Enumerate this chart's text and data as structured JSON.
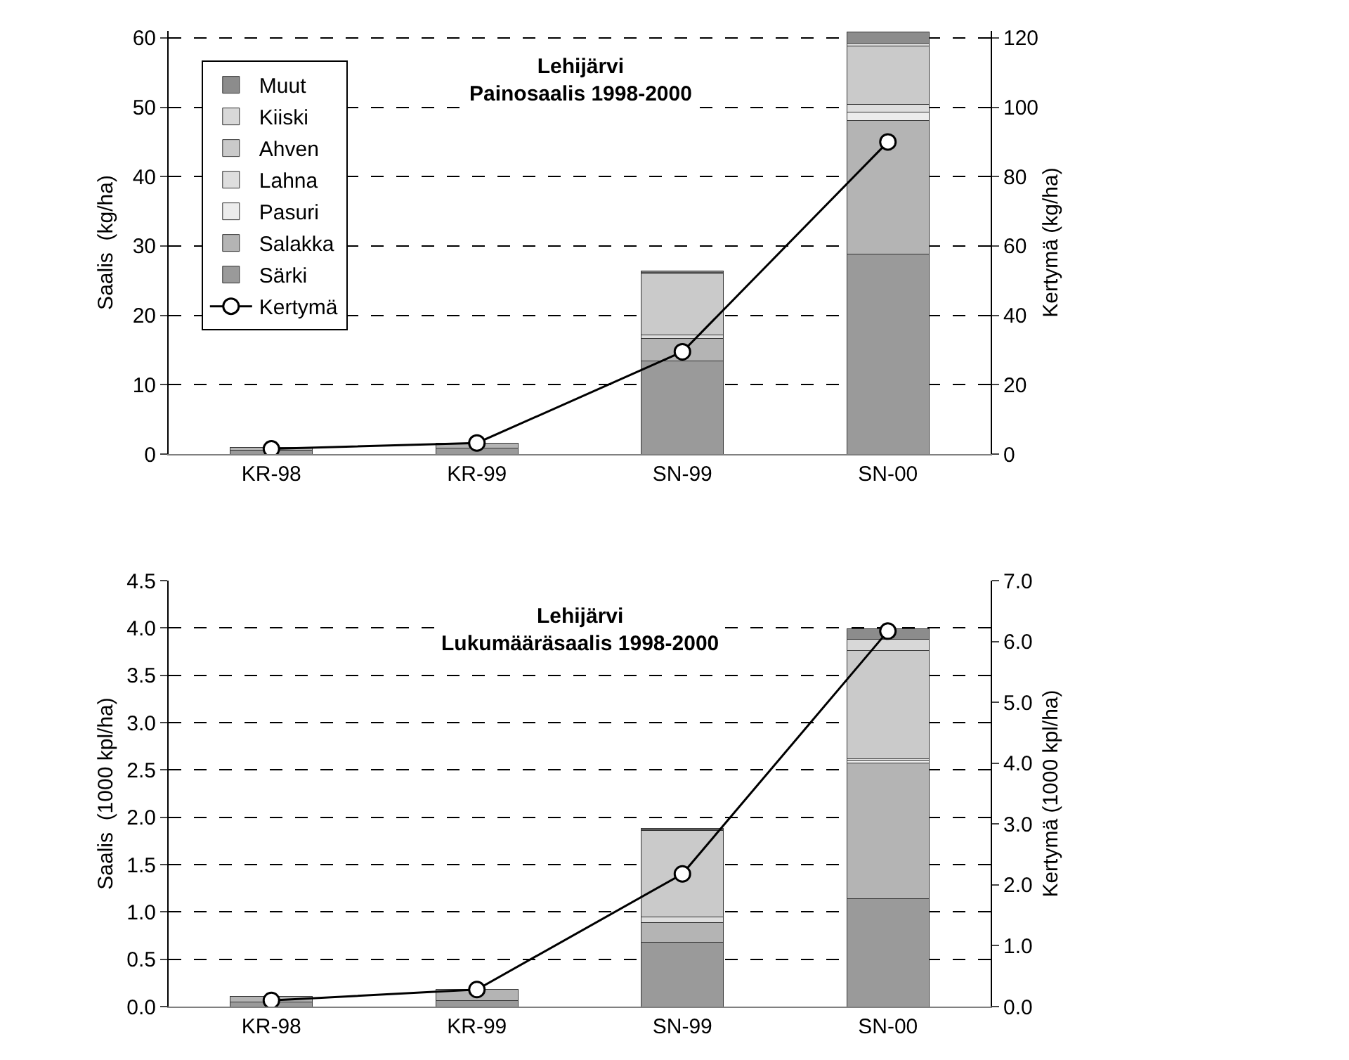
{
  "chart_data": [
    {
      "type": "bar",
      "title": "Lehijärvi",
      "subtitle": "Painosaalis 1998-2000",
      "ylabel": "Saalis  (kg/ha)",
      "y2label": "Kertymä (kg/ha)",
      "categories": [
        "KR-98",
        "KR-99",
        "SN-99",
        "SN-00"
      ],
      "stacked": true,
      "grid": "y",
      "legend": "top left",
      "ylim": [
        0,
        61
      ],
      "yticks": [
        0,
        10,
        20,
        30,
        40,
        50,
        60
      ],
      "y2lim": [
        0,
        122
      ],
      "y2ticks": [
        0,
        20,
        40,
        60,
        80,
        100,
        120
      ],
      "series": [
        {
          "name": "Särki",
          "color": "#9a9a9a",
          "values": [
            0.6,
            0.9,
            13.4,
            28.8
          ]
        },
        {
          "name": "Salakka",
          "color": "#b4b4b4",
          "values": [
            0.4,
            0.7,
            3.3,
            19.3
          ]
        },
        {
          "name": "Pasuri",
          "color": "#ececec",
          "values": [
            null,
            null,
            null,
            1.2
          ]
        },
        {
          "name": "Lahna",
          "color": "#dedede",
          "values": [
            null,
            null,
            0.5,
            1.1
          ]
        },
        {
          "name": "Ahven",
          "color": "#cacaca",
          "values": [
            null,
            null,
            8.8,
            8.4
          ]
        },
        {
          "name": "Kiiski",
          "color": "#d8d8d8",
          "values": [
            null,
            null,
            0.2,
            0.4
          ]
        },
        {
          "name": "Muut",
          "color": "#8c8c8c",
          "values": [
            null,
            null,
            0.2,
            1.6
          ]
        },
        {
          "name": "Kertymä",
          "type": "line",
          "axis": "y2",
          "color": "#000000",
          "marker": "circle",
          "values": [
            1.5,
            3.2,
            29.5,
            90
          ]
        }
      ]
    },
    {
      "type": "bar",
      "title": "Lehijärvi",
      "subtitle": "Lukumääräsaalis 1998-2000",
      "ylabel": "Saalis  (1000 kpl/ha)",
      "y2label": "Kertymä (1000 kpl/ha)",
      "categories": [
        "KR-98",
        "KR-99",
        "SN-99",
        "SN-00"
      ],
      "stacked": true,
      "grid": "y",
      "ylim": [
        0,
        4.5
      ],
      "yticks": [
        {
          "value": 0,
          "label": "0.0"
        },
        {
          "value": 0.5,
          "label": "0.5"
        },
        {
          "value": 1,
          "label": "1.0"
        },
        {
          "value": 1.5,
          "label": "1.5"
        },
        {
          "value": 2,
          "label": "2.0"
        },
        {
          "value": 2.5,
          "label": "2.5"
        },
        {
          "value": 3,
          "label": "3.0"
        },
        {
          "value": 3.5,
          "label": "3.5"
        },
        {
          "value": 4,
          "label": "4.0"
        },
        {
          "value": 4.5,
          "label": "4.5"
        }
      ],
      "y2lim": [
        0,
        7
      ],
      "y2ticks": [
        {
          "value": 0,
          "label": "0.0"
        },
        {
          "value": 1,
          "label": "1.0"
        },
        {
          "value": 2,
          "label": "2.0"
        },
        {
          "value": 3,
          "label": "3.0"
        },
        {
          "value": 4,
          "label": "4.0"
        },
        {
          "value": 5,
          "label": "5.0"
        },
        {
          "value": 6,
          "label": "6.0"
        },
        {
          "value": 7,
          "label": "7.0"
        }
      ],
      "series": [
        {
          "color": "#9a9a9a",
          "values": [
            0.05,
            0.06,
            0.68,
            1.14
          ]
        },
        {
          "color": "#b4b4b4",
          "values": [
            0.06,
            0.12,
            0.21,
            1.43
          ]
        },
        {
          "color": "#ececec",
          "values": [
            null,
            null,
            null,
            0.03
          ]
        },
        {
          "color": "#dedede",
          "values": [
            null,
            null,
            0.06,
            0.02
          ]
        },
        {
          "color": "#cacaca",
          "values": [
            null,
            null,
            0.91,
            1.14
          ]
        },
        {
          "color": "#d8d8d8",
          "values": [
            null,
            null,
            0.01,
            0.12
          ]
        },
        {
          "color": "#8c8c8c",
          "values": [
            null,
            null,
            0.01,
            0.11
          ]
        },
        {
          "type": "line",
          "axis": "y2",
          "color": "#000000",
          "marker": "circle",
          "values": [
            0.1,
            0.28,
            2.18,
            6.17
          ]
        }
      ]
    }
  ]
}
